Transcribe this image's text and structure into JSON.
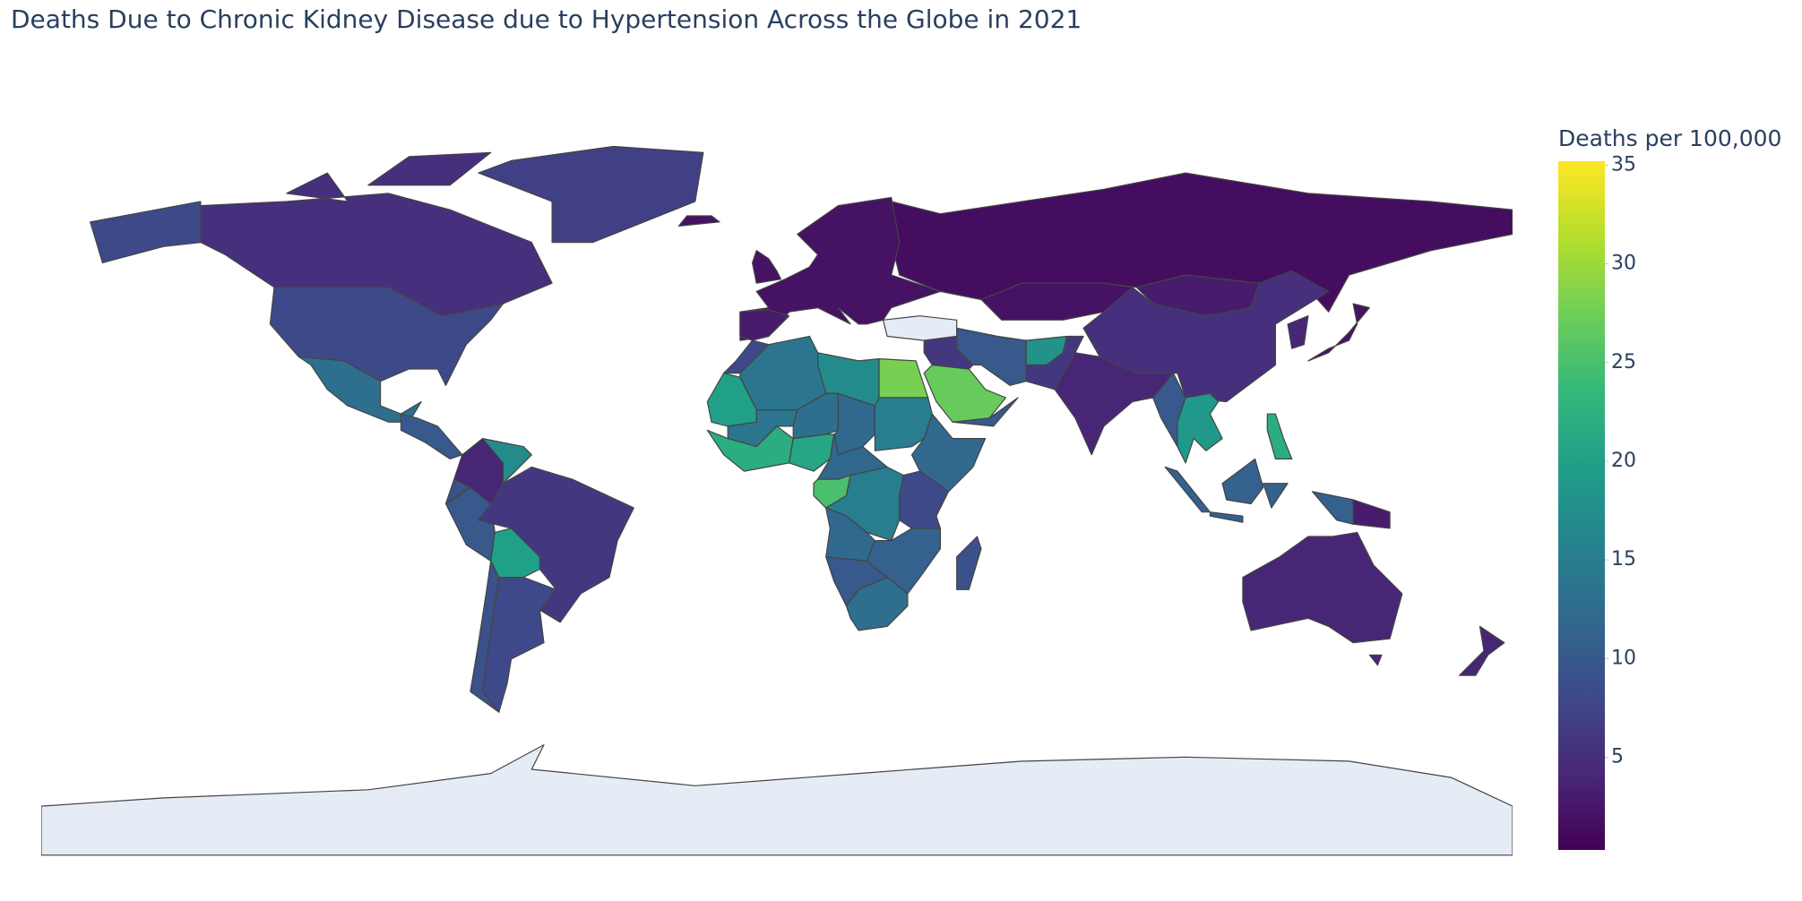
{
  "chart_data": {
    "type": "choropleth",
    "title": "Deaths Due to Chronic Kidney Disease due to Hypertension Across the Globe in 2021",
    "colorbar_title": "Deaths per 100,000",
    "values": [
      1.5,
      5,
      8,
      7,
      13,
      4,
      17,
      10,
      6,
      20,
      8,
      9,
      2,
      3,
      2,
      2,
      3,
      5,
      4,
      10,
      18,
      6,
      27,
      10,
      6,
      28,
      17,
      14,
      8,
      20,
      14,
      13,
      12,
      15,
      22,
      21,
      12,
      12,
      25,
      15,
      8,
      12,
      11,
      10,
      13,
      9,
      10,
      19,
      11,
      3,
      22,
      2,
      4,
      4,
      4,
      2,
      10,
      9
    ],
    "zlim": [
      0.3,
      35.2
    ],
    "zticks": [
      5,
      10,
      15,
      20,
      25,
      30,
      35
    ],
    "colorscale": [
      "#440154",
      "#482878",
      "#3e4989",
      "#31688e",
      "#26828e",
      "#1f9e89",
      "#35b779",
      "#6ece58",
      "#b5de2b",
      "#fde725"
    ]
  }
}
